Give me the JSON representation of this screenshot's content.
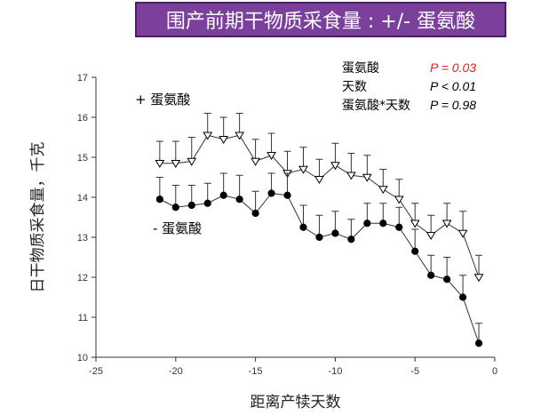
{
  "title": "围产前期干物质采食量 : +/- 蛋氨酸",
  "colors": {
    "title_bg": "#7b3f9c",
    "accent_red": "#e0201c"
  },
  "chart_data": {
    "type": "line",
    "xlabel": "距离产犊天数",
    "ylabel": "日干物质采食量，千克",
    "xlim": [
      -25,
      0
    ],
    "ylim": [
      10,
      17
    ],
    "xticks": [
      "-25",
      "-20",
      "-15",
      "-10",
      "-5",
      "0"
    ],
    "yticks": [
      "10",
      "11",
      "12",
      "13",
      "14",
      "15",
      "16",
      "17"
    ],
    "x": [
      -21,
      -20,
      -19,
      -18,
      -17,
      -16,
      -15,
      -14,
      -13,
      -12,
      -11,
      -10,
      -9,
      -8,
      -7,
      -6,
      -5,
      -4,
      -3,
      -2,
      -1
    ],
    "series": [
      {
        "name": "+ 蛋氨酸",
        "marker": "open-triangle-down",
        "color": "#e0201c",
        "values": [
          14.85,
          14.85,
          14.9,
          15.55,
          15.45,
          15.55,
          14.9,
          15.05,
          14.6,
          14.7,
          14.45,
          14.8,
          14.55,
          14.5,
          14.2,
          13.95,
          13.35,
          13.05,
          13.35,
          13.1,
          12.0
        ],
        "error": [
          0.55,
          0.55,
          0.6,
          0.55,
          0.55,
          0.55,
          0.55,
          0.55,
          0.55,
          0.55,
          0.5,
          0.55,
          0.55,
          0.55,
          0.5,
          0.5,
          0.5,
          0.5,
          0.5,
          0.55,
          0.55
        ]
      },
      {
        "name": "- 蛋氨酸",
        "marker": "filled-circle",
        "color": "#e0201c",
        "values": [
          13.95,
          13.75,
          13.8,
          13.85,
          14.05,
          13.95,
          13.6,
          14.1,
          14.05,
          13.25,
          13.0,
          13.1,
          12.95,
          13.35,
          13.35,
          13.25,
          12.65,
          12.05,
          11.95,
          11.5,
          10.35
        ],
        "error": [
          0.55,
          0.55,
          0.5,
          0.5,
          0.55,
          0.6,
          0.55,
          0.5,
          0.55,
          0.55,
          0.55,
          0.55,
          0.5,
          0.5,
          0.5,
          0.5,
          0.55,
          0.5,
          0.55,
          0.55,
          0.5
        ]
      }
    ],
    "stats": [
      {
        "label": "蛋氨酸",
        "p": "P = 0.03",
        "highlight": true
      },
      {
        "label": "天数",
        "p": "P < 0.01",
        "highlight": false
      },
      {
        "label": "蛋氨酸*天数",
        "p": "P = 0.98",
        "highlight": false
      }
    ]
  }
}
